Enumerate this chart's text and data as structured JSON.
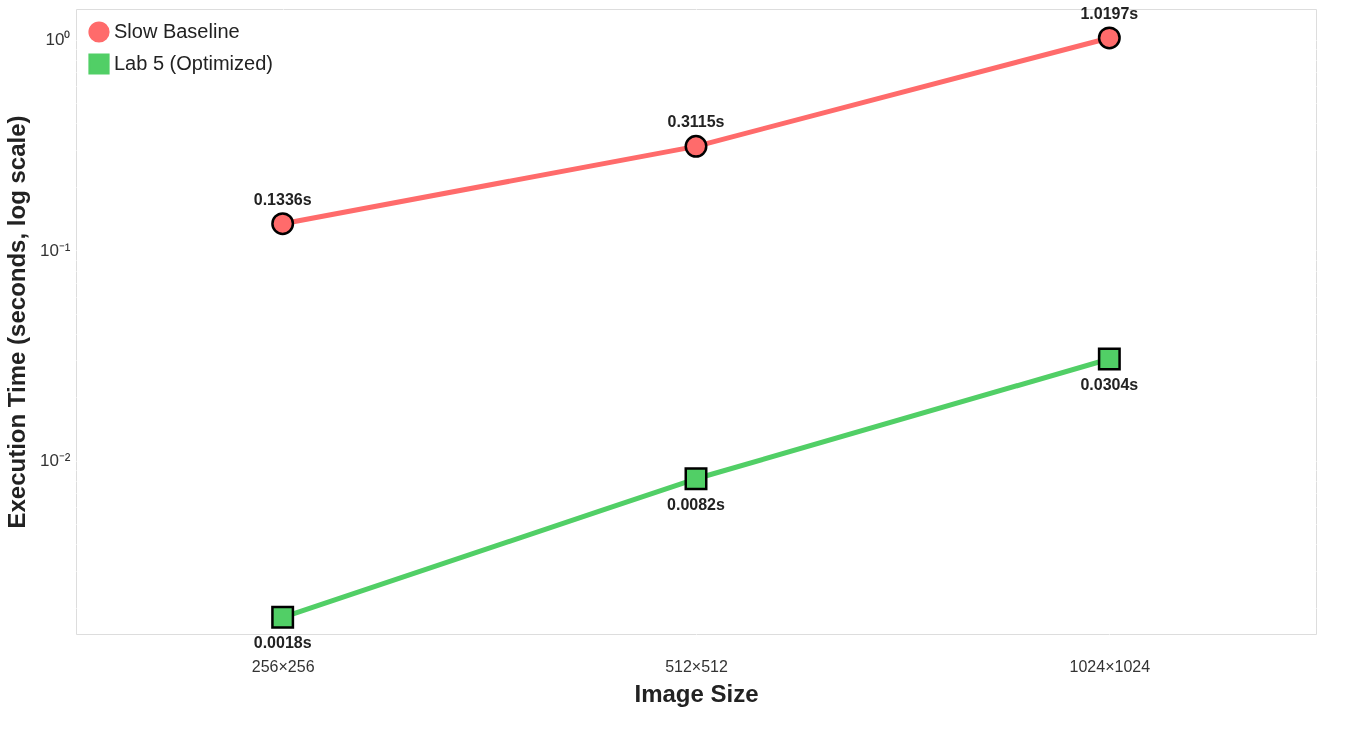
{
  "chart_data": {
    "type": "line",
    "xlabel": "Image Size",
    "ylabel": "Execution Time (seconds, log scale)",
    "categories": [
      "256×256",
      "512×512",
      "1024×1024"
    ],
    "series": [
      {
        "name": "Slow Baseline",
        "color": "#ff6b6b",
        "marker": "circle",
        "values": [
          0.1336,
          0.3115,
          1.0197
        ],
        "value_labels": [
          "0.1336s",
          "0.3115s",
          "1.0197s"
        ]
      },
      {
        "name": "Lab 5 (Optimized)",
        "color": "#51cf66",
        "marker": "square",
        "values": [
          0.0018,
          0.0082,
          0.0304
        ],
        "value_labels": [
          "0.0018s",
          "0.0082s",
          "0.0304s"
        ]
      }
    ],
    "log": "y",
    "ylim": [
      0.0015,
      1.4
    ],
    "yticks": [
      {
        "value": 0.002,
        "label": null
      },
      {
        "value": 0.003,
        "label": null
      },
      {
        "value": 0.004,
        "label": null
      },
      {
        "value": 0.005,
        "label": null
      },
      {
        "value": 0.006,
        "label": null
      },
      {
        "value": 0.007,
        "label": null
      },
      {
        "value": 0.008,
        "label": null
      },
      {
        "value": 0.009,
        "label": null
      },
      {
        "value": 0.01,
        "label": "10⁻²"
      },
      {
        "value": 0.02,
        "label": null
      },
      {
        "value": 0.03,
        "label": null
      },
      {
        "value": 0.04,
        "label": null
      },
      {
        "value": 0.05,
        "label": null
      },
      {
        "value": 0.06,
        "label": null
      },
      {
        "value": 0.07,
        "label": null
      },
      {
        "value": 0.08,
        "label": null
      },
      {
        "value": 0.09,
        "label": null
      },
      {
        "value": 0.1,
        "label": "10⁻¹"
      },
      {
        "value": 0.2,
        "label": null
      },
      {
        "value": 0.3,
        "label": null
      },
      {
        "value": 0.4,
        "label": null
      },
      {
        "value": 0.5,
        "label": null
      },
      {
        "value": 0.6,
        "label": null
      },
      {
        "value": 0.7,
        "label": null
      },
      {
        "value": 0.8,
        "label": null
      },
      {
        "value": 0.9,
        "label": null
      },
      {
        "value": 1,
        "label": "10⁰"
      }
    ],
    "grid": true,
    "legend": "top left",
    "line_style": "solid"
  }
}
